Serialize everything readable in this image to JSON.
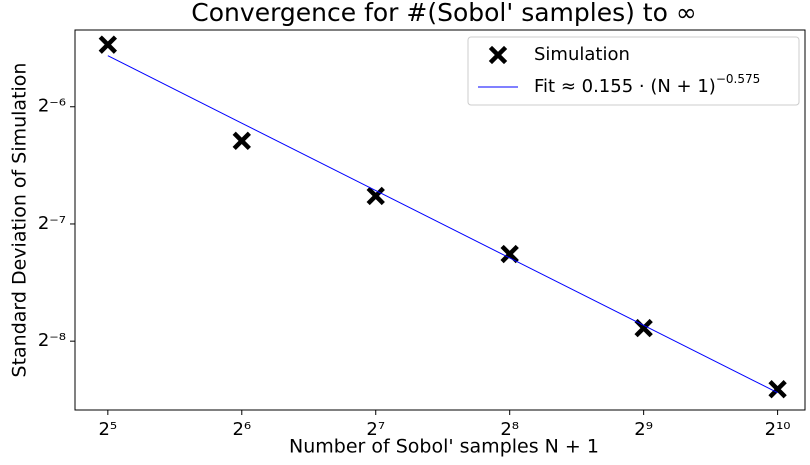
{
  "chart_data": {
    "type": "scatter",
    "title": "Convergence for #(Sobol' samples) to ∞",
    "x_label": "Number of Sobol' samples N + 1",
    "y_label": "Standard Deviation of Simulation",
    "log_x": true,
    "log_y": true,
    "x": [
      32,
      64,
      128,
      256,
      512,
      1024
    ],
    "series": [
      {
        "name": "Simulation",
        "color": "#000000",
        "kind": "marker",
        "values": [
          0.02256,
          0.01277,
          0.00922,
          0.00654,
          0.00422,
          0.00294
        ]
      },
      {
        "name": "Fit ≈ 0.155 · (N + 1)",
        "exponent": "−0.575",
        "color": "#0000ff",
        "kind": "line",
        "values": [
          0.02113,
          0.01418,
          0.00952,
          0.00639,
          0.00429,
          0.00288
        ]
      }
    ],
    "xlim": [
      27.0,
      1180
    ],
    "ylim": [
      0.0026,
      0.0246
    ],
    "xticks": [
      {
        "value": 32,
        "label": "2⁵"
      },
      {
        "value": 64,
        "label": "2⁶"
      },
      {
        "value": 128,
        "label": "2⁷"
      },
      {
        "value": 256,
        "label": "2⁸"
      },
      {
        "value": 512,
        "label": "2⁹"
      },
      {
        "value": 1024,
        "label": "2¹⁰"
      }
    ],
    "yticks": [
      {
        "value": 0.015625,
        "label": "2⁻⁶"
      },
      {
        "value": 0.0078125,
        "label": "2⁻⁷"
      },
      {
        "value": 0.00390625,
        "label": "2⁻⁸"
      }
    ],
    "legend": "upper right"
  }
}
